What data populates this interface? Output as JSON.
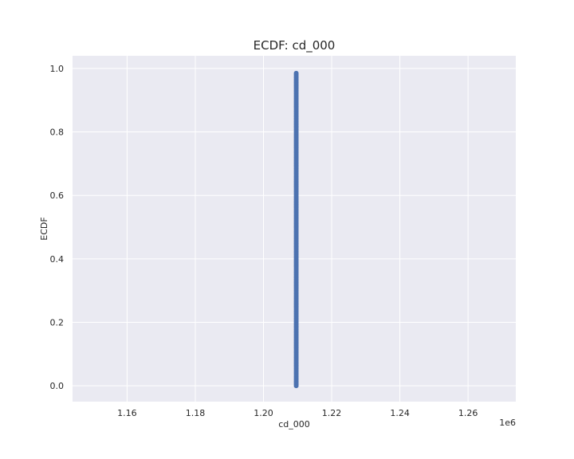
{
  "chart_data": {
    "type": "scatter",
    "title": "ECDF: cd_000",
    "xlabel": "cd_000",
    "ylabel": "ECDF",
    "x_offset_label": "1e6",
    "xlim": [
      1144000,
      1274000
    ],
    "ylim": [
      -0.05,
      1.04
    ],
    "xticks": [
      1160000,
      1180000,
      1200000,
      1220000,
      1240000,
      1260000
    ],
    "xtick_labels": [
      "1.16",
      "1.18",
      "1.20",
      "1.22",
      "1.24",
      "1.26"
    ],
    "yticks": [
      0.0,
      0.2,
      0.4,
      0.6,
      0.8,
      1.0
    ],
    "ytick_labels": [
      "0.0",
      "0.2",
      "0.4",
      "0.6",
      "0.8",
      "1.0"
    ],
    "grid": true,
    "colors": {
      "background": "#eaeaf2",
      "grid": "#ffffff",
      "series": "#4c72b0"
    },
    "series": [
      {
        "x": 1209600,
        "y_from": 0.0,
        "y_to": 0.985
      }
    ]
  }
}
